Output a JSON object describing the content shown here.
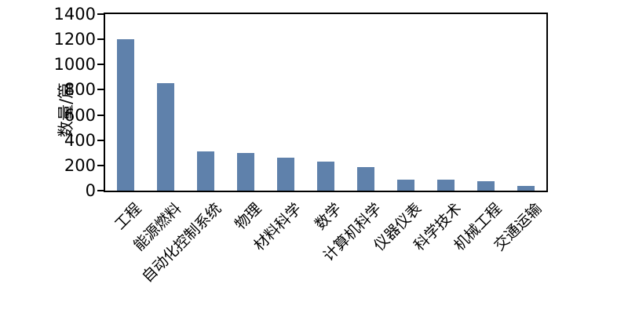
{
  "chart_data": {
    "type": "bar",
    "title": "",
    "xlabel": "",
    "ylabel": "数量/篇",
    "ylim": [
      0,
      1400
    ],
    "ytick_step": 200,
    "grid": false,
    "legend": "none",
    "bar_color": "#5f81ab",
    "axis_color": "#000000",
    "categories": [
      "工程",
      "能源燃料",
      "自动化控制系统",
      "物理",
      "材料科学",
      "数学",
      "计算机科学",
      "仪器仪表",
      "科学技术",
      "机械工程",
      "交通运输"
    ],
    "values": [
      1200,
      850,
      310,
      300,
      260,
      230,
      185,
      90,
      90,
      75,
      40
    ]
  }
}
